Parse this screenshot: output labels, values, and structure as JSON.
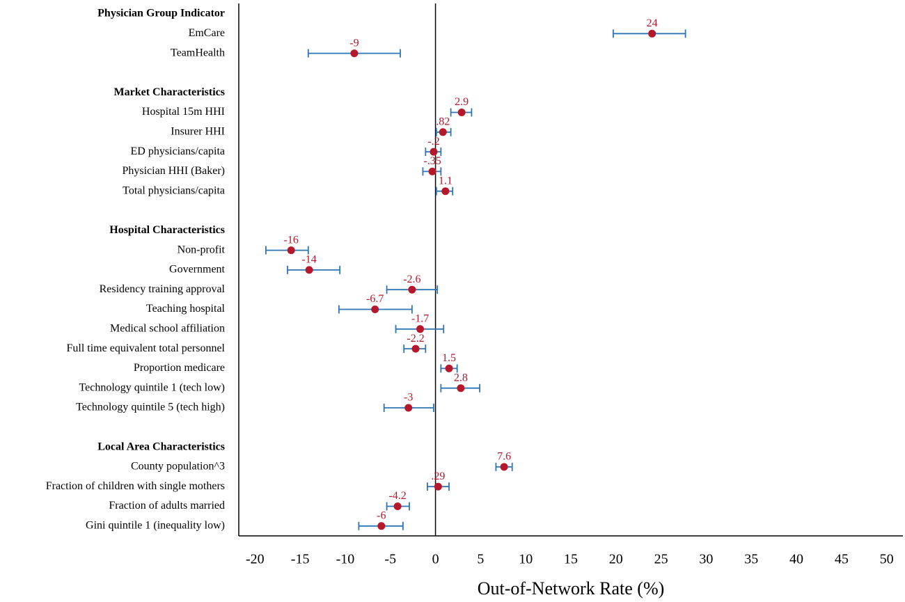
{
  "chart_data": {
    "type": "coefplot",
    "xlabel": "Out-of-Network Rate (%)",
    "xlim": [
      -21.8,
      51.8
    ],
    "xticks": [
      -20,
      -15,
      -10,
      -5,
      0,
      5,
      10,
      15,
      20,
      25,
      30,
      35,
      40,
      45,
      50
    ],
    "dot_color": "#b5182b",
    "bar_color": "#2e75b6",
    "groups": [
      {
        "name": "Physician Group Indicator",
        "categories": [
          "EmCare",
          "TeamHealth"
        ],
        "values": [
          24,
          -9
        ],
        "value_labels": [
          "24",
          "-9"
        ],
        "lower": [
          19.7,
          -14.1
        ],
        "upper": [
          27.7,
          -3.9
        ]
      },
      {
        "name": "Market Characteristics",
        "categories": [
          "Hospital 15m HHI",
          "Insurer HHI",
          "ED physicians/capita",
          "Physician HHI (Baker)",
          "Total physicians/capita"
        ],
        "values": [
          2.9,
          0.82,
          -0.2,
          -0.35,
          1.1
        ],
        "value_labels": [
          "2.9",
          ".82",
          "-.2",
          "-.35",
          "1.1"
        ],
        "lower": [
          1.7,
          0.1,
          -1.1,
          -1.4,
          0.1
        ],
        "upper": [
          4.0,
          1.7,
          0.6,
          0.6,
          1.9
        ]
      },
      {
        "name": "Hospital Characteristics",
        "categories": [
          "Non-profit",
          "Government",
          "Residency training approval",
          "Teaching hospital",
          "Medical school affiliation",
          "Full time equivalent total personnel",
          "Proportion medicare",
          "Technology quintile 1 (tech low)",
          "Technology quintile 5 (tech high)"
        ],
        "values": [
          -16,
          -14,
          -2.6,
          -6.7,
          -1.7,
          -2.2,
          1.5,
          2.8,
          -3
        ],
        "value_labels": [
          "-16",
          "-14",
          "-2.6",
          "-6.7",
          "-1.7",
          "-2.2",
          "1.5",
          "2.8",
          "-3"
        ],
        "lower": [
          -18.8,
          -16.4,
          -5.4,
          -10.7,
          -4.4,
          -3.5,
          0.6,
          0.6,
          -5.7
        ],
        "upper": [
          -14.1,
          -10.6,
          0.2,
          -2.6,
          0.9,
          -1.1,
          2.4,
          4.9,
          -0.2
        ]
      },
      {
        "name": "Local Area Characteristics",
        "categories": [
          "County population^3",
          "Fraction of children with single mothers",
          "Fraction of adults married",
          "Gini quintile 1 (inequality low)"
        ],
        "values": [
          7.6,
          0.29,
          -4.2,
          -6
        ],
        "value_labels": [
          "7.6",
          ".29",
          "-4.2",
          "-6"
        ],
        "lower": [
          6.7,
          -0.9,
          -5.4,
          -8.5
        ],
        "upper": [
          8.5,
          1.5,
          -2.9,
          -3.6
        ]
      }
    ]
  }
}
